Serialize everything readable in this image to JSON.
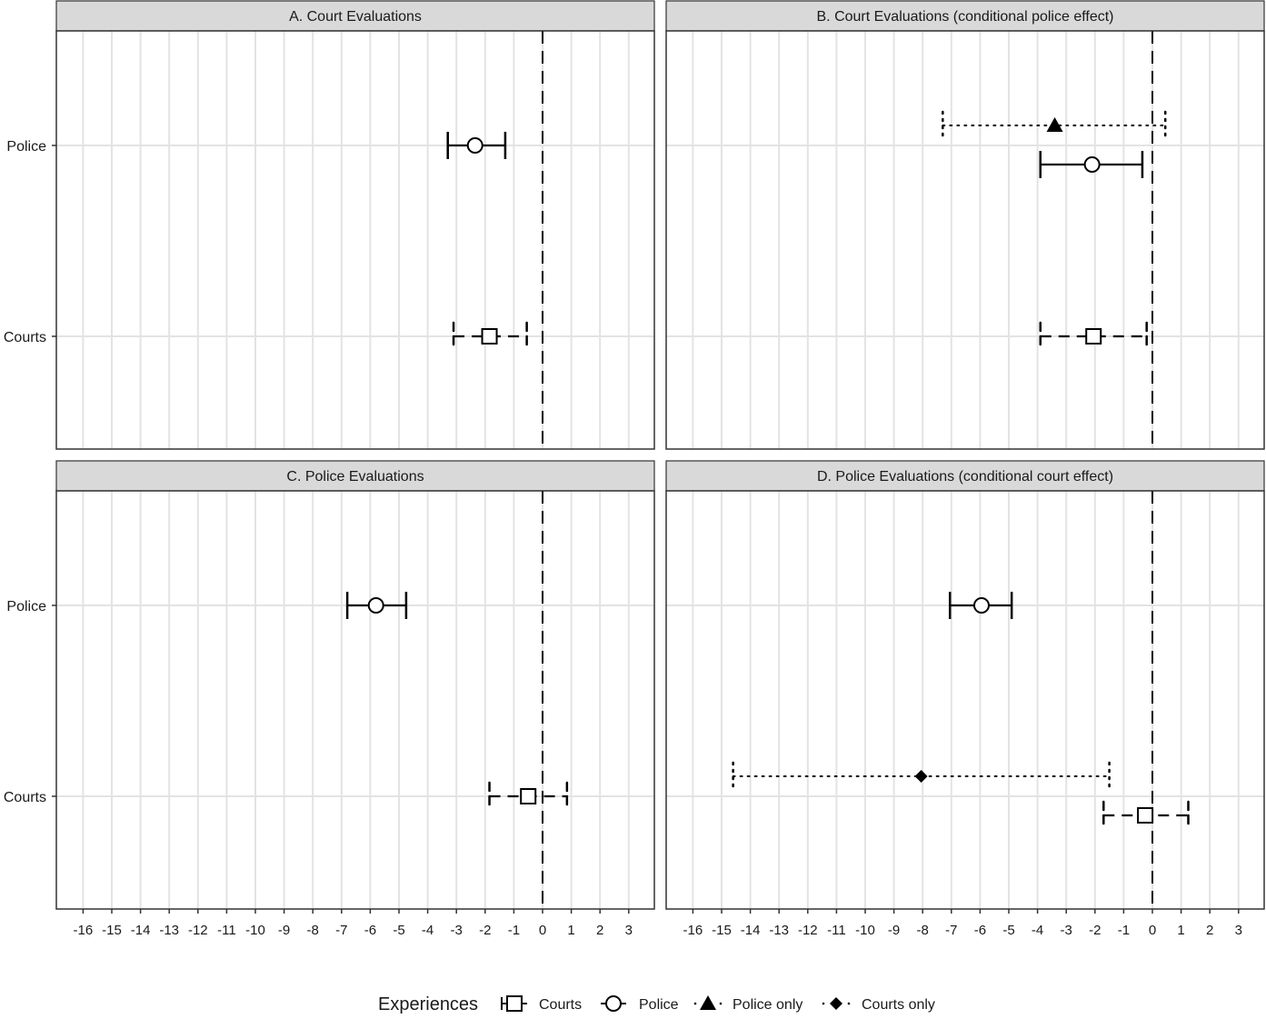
{
  "chart_data": {
    "type": "forest",
    "xlim": [
      -17,
      3.8
    ],
    "x_ticks": [
      -16,
      -15,
      -14,
      -13,
      -12,
      -11,
      -10,
      -9,
      -8,
      -7,
      -6,
      -5,
      -4,
      -3,
      -2,
      -1,
      0,
      1,
      2,
      3
    ],
    "y_categories": [
      "Police",
      "Courts"
    ],
    "reference_line": 0,
    "legend": {
      "title": "Experiences",
      "entries": [
        {
          "label": "Courts",
          "shape": "open-square",
          "linetype": "dashed"
        },
        {
          "label": "Police",
          "shape": "open-circle",
          "linetype": "solid"
        },
        {
          "label": "Police only",
          "shape": "filled-triangle",
          "linetype": "dotted"
        },
        {
          "label": "Courts only",
          "shape": "filled-diamond",
          "linetype": "dotted"
        }
      ]
    },
    "panels": [
      {
        "title": "A. Court Evaluations",
        "estimates": [
          {
            "row": "Police",
            "series": "Police",
            "estimate": -2.35,
            "lower": -3.3,
            "upper": -1.3,
            "offset": 0
          },
          {
            "row": "Courts",
            "series": "Courts",
            "estimate": -1.85,
            "lower": -3.1,
            "upper": -0.55,
            "offset": 0
          }
        ]
      },
      {
        "title": "B. Court Evaluations (conditional police effect)",
        "estimates": [
          {
            "row": "Police",
            "series": "Police only",
            "estimate": -3.4,
            "lower": -7.3,
            "upper": 0.45,
            "offset": -22
          },
          {
            "row": "Police",
            "series": "Police",
            "estimate": -2.1,
            "lower": -3.9,
            "upper": -0.35,
            "offset": 21
          },
          {
            "row": "Courts",
            "series": "Courts",
            "estimate": -2.05,
            "lower": -3.9,
            "upper": -0.2,
            "offset": 0
          }
        ]
      },
      {
        "title": "C. Police Evaluations",
        "estimates": [
          {
            "row": "Police",
            "series": "Police",
            "estimate": -5.8,
            "lower": -6.8,
            "upper": -4.75,
            "offset": 0
          },
          {
            "row": "Courts",
            "series": "Courts",
            "estimate": -0.5,
            "lower": -1.85,
            "upper": 0.85,
            "offset": 0
          }
        ]
      },
      {
        "title": "D. Police Evaluations (conditional court effect)",
        "estimates": [
          {
            "row": "Police",
            "series": "Police",
            "estimate": -5.95,
            "lower": -7.05,
            "upper": -4.9,
            "offset": 0
          },
          {
            "row": "Courts",
            "series": "Courts only",
            "estimate": -8.05,
            "lower": -14.6,
            "upper": -1.5,
            "offset": -22
          },
          {
            "row": "Courts",
            "series": "Courts",
            "estimate": -0.25,
            "lower": -1.7,
            "upper": 1.25,
            "offset": 21
          }
        ]
      }
    ]
  }
}
